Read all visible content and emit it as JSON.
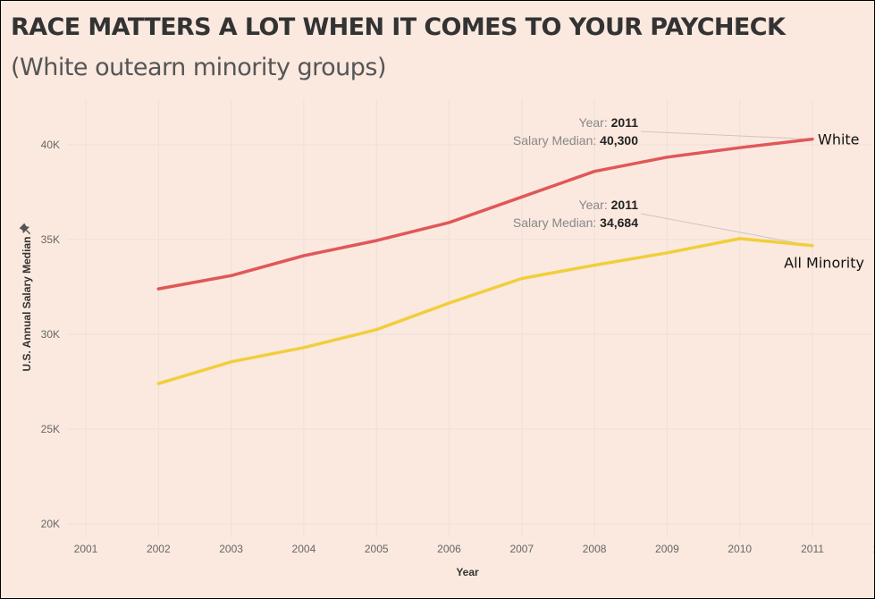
{
  "header": {
    "title": "RACE MATTERS A LOT WHEN IT COMES TO YOUR PAYCHECK",
    "subtitle": "(White outearn minority groups)"
  },
  "chart_data": {
    "type": "line",
    "title": "RACE MATTERS A LOT WHEN IT COMES TO YOUR PAYCHECK",
    "subtitle": "(White outearn minority groups)",
    "xlabel": "Year",
    "ylabel": "U.S. Annual Salary Median",
    "x": [
      2002,
      2003,
      2004,
      2005,
      2006,
      2007,
      2008,
      2009,
      2010,
      2011
    ],
    "x_ticks": [
      "2001",
      "2002",
      "2003",
      "2004",
      "2005",
      "2006",
      "2007",
      "2008",
      "2009",
      "2010",
      "2011",
      "2012"
    ],
    "xlim": [
      2001,
      2012
    ],
    "y_ticks": [
      "20K",
      "25K",
      "30K",
      "35K",
      "40K"
    ],
    "y_tick_values": [
      20000,
      25000,
      30000,
      35000,
      40000
    ],
    "ylim": [
      20000,
      42000
    ],
    "grid": true,
    "legend": "labels at line ends",
    "series": [
      {
        "name": "White",
        "color": "#e15759",
        "values": [
          32400,
          33100,
          34150,
          34950,
          35900,
          37250,
          38600,
          39350,
          39850,
          40300
        ]
      },
      {
        "name": "All Minority",
        "color": "#f1ce3b",
        "values": [
          27400,
          28550,
          29300,
          30250,
          31650,
          32950,
          33650,
          34300,
          35050,
          34684
        ]
      }
    ],
    "annotations": [
      {
        "series": "White",
        "year_key": "Year:",
        "year_value": "2011",
        "salary_key": "Salary Median:",
        "salary_value": "40,300"
      },
      {
        "series": "All Minority",
        "year_key": "Year:",
        "year_value": "2011",
        "salary_key": "Salary Median:",
        "salary_value": "34,684"
      }
    ],
    "pin_icon": "pin-icon"
  }
}
